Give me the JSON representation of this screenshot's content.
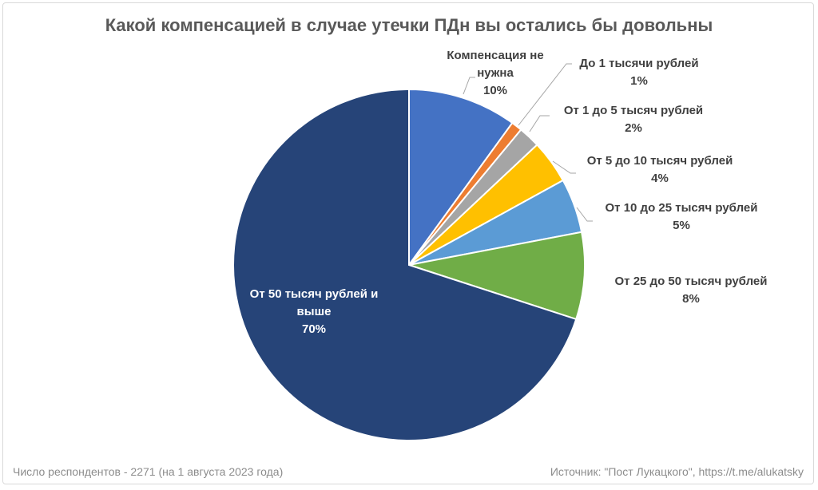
{
  "chart_data": {
    "type": "pie",
    "title": "Какой компенсацией в случае утечки ПДн вы остались бы довольны",
    "start": "top",
    "direction": "clockwise",
    "slices": [
      {
        "label": "Компенсация не нужна",
        "lines": [
          "Компенсация не",
          "нужна"
        ],
        "value": 10,
        "value_label": "10%",
        "color": "#4472C4"
      },
      {
        "label": "До 1 тысячи рублей",
        "lines": [
          "До 1 тысячи рублей"
        ],
        "value": 1,
        "value_label": "1%",
        "color": "#ED7D31"
      },
      {
        "label": "От 1 до 5 тысяч рублей",
        "lines": [
          "От 1 до 5 тысяч рублей"
        ],
        "value": 2,
        "value_label": "2%",
        "color": "#A5A5A5"
      },
      {
        "label": "От 5 до 10 тысяч рублей",
        "lines": [
          "От 5 до 10 тысяч рублей"
        ],
        "value": 4,
        "value_label": "4%",
        "color": "#FFC000"
      },
      {
        "label": "От 10 до 25 тысяч рублей",
        "lines": [
          "От 10 до 25 тысяч рублей"
        ],
        "value": 5,
        "value_label": "5%",
        "color": "#5B9BD5"
      },
      {
        "label": "От 25 до 50 тысяч рублей",
        "lines": [
          "От 25 до 50 тысяч рублей"
        ],
        "value": 8,
        "value_label": "8%",
        "color": "#70AD47"
      },
      {
        "label": "От 50 тысяч рублей и выше",
        "lines": [
          "От 50 тысяч рублей и",
          "выше"
        ],
        "value": 70,
        "value_label": "70%",
        "color": "#264478"
      }
    ]
  },
  "footer": {
    "respondents": "Число респондентов - 2271 (на 1 августа 2023 года)",
    "source": "Источник: \"Пост Лукацкого\", https://t.me/alukatsky"
  }
}
